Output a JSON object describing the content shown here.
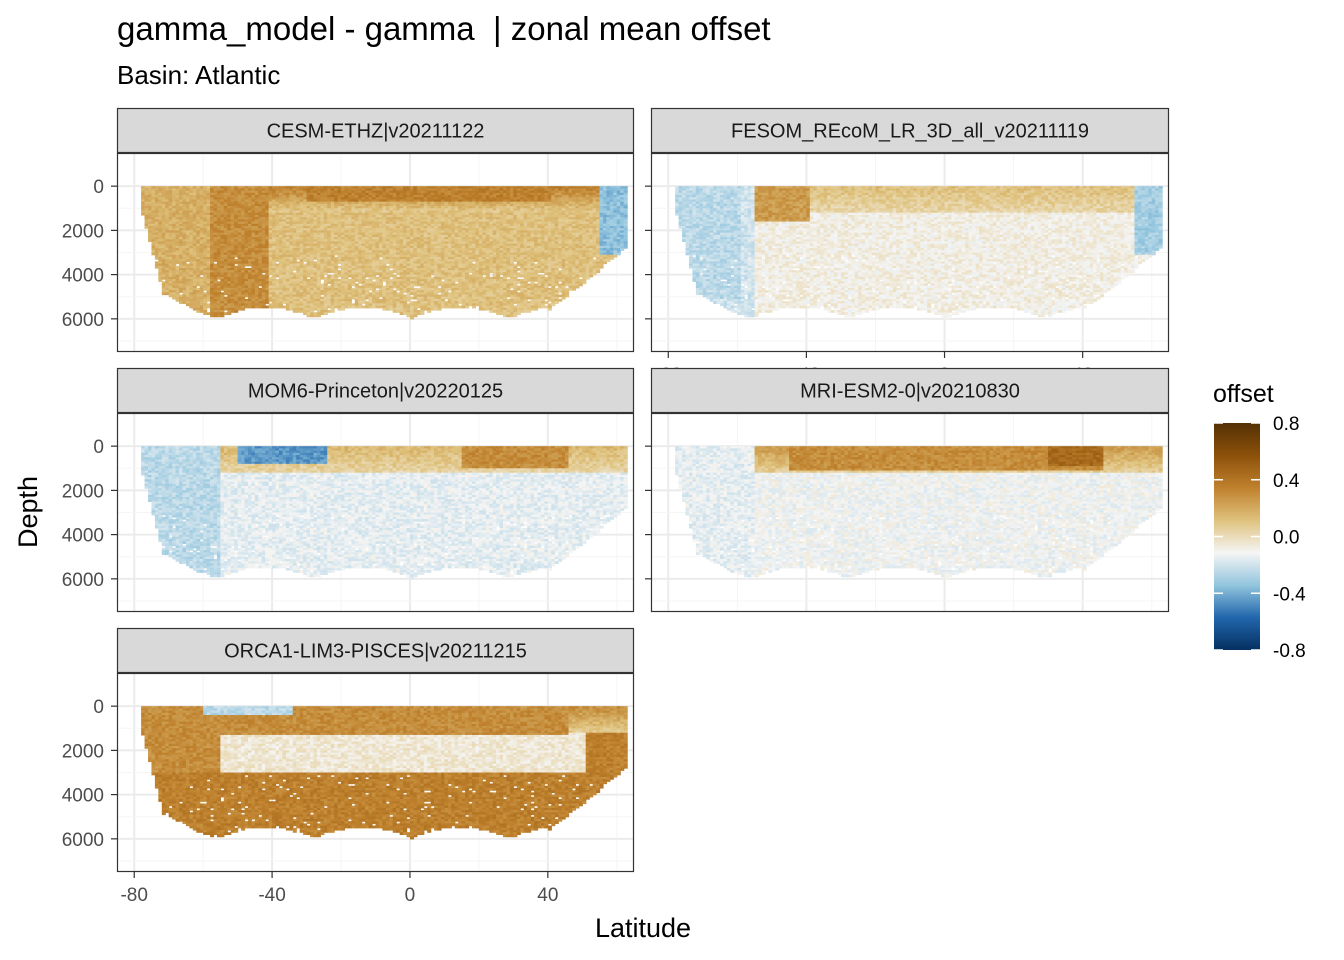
{
  "title": "gamma_model - gamma  | zonal mean offset",
  "subtitle": "Basin: Atlantic",
  "chart_data": {
    "type": "heatmap",
    "xlabel": "Latitude",
    "ylabel": "Depth",
    "x_ticks": [
      -80,
      -40,
      0,
      40
    ],
    "y_ticks": [
      0,
      2000,
      4000,
      6000
    ],
    "xlim": [
      -85,
      65
    ],
    "ylim": [
      7500,
      -1500
    ],
    "y_reversed": true,
    "grid": true,
    "legend": {
      "title": "offset",
      "position": "right",
      "ticks": [
        0.8,
        0.4,
        0.0,
        -0.4,
        -0.8
      ],
      "tick_labels": [
        "0.8",
        "0.4",
        "0.0",
        "-0.4",
        "-0.8"
      ],
      "range": [
        -0.8,
        0.8
      ],
      "colors": [
        "#053061",
        "#2166ac",
        "#92c5de",
        "#f5f5f5",
        "#dfc27d",
        "#bf812d",
        "#8c510a",
        "#543005"
      ]
    },
    "panels": [
      {
        "name": "CESM-ETHZ|v20211122",
        "surface_offset": 0.35,
        "deep_offset": 0.12,
        "southern_offset": 0.18,
        "zones": [
          {
            "lat_min": -58,
            "lat_max": -42,
            "depth_min": 0,
            "depth_max": 6000,
            "offset": 0.3
          },
          {
            "lat_min": -30,
            "lat_max": 40,
            "depth_min": 0,
            "depth_max": 600,
            "offset": 0.35
          },
          {
            "lat_min": 55,
            "lat_max": 63,
            "depth_min": 0,
            "depth_max": 3000,
            "offset": -0.35
          }
        ]
      },
      {
        "name": "FESOM_REcoM_LR_3D_all_v20211119",
        "surface_offset": 0.12,
        "deep_offset": -0.08,
        "southern_offset": -0.2,
        "zones": [
          {
            "lat_min": -55,
            "lat_max": -40,
            "depth_min": 0,
            "depth_max": 1500,
            "offset": 0.25
          },
          {
            "lat_min": -78,
            "lat_max": -60,
            "depth_min": 0,
            "depth_max": 5000,
            "offset": -0.25
          },
          {
            "lat_min": 55,
            "lat_max": 63,
            "depth_min": 0,
            "depth_max": 3000,
            "offset": -0.3
          }
        ]
      },
      {
        "name": "MOM6-Princeton|v20220125",
        "surface_offset": 0.15,
        "deep_offset": -0.15,
        "southern_offset": -0.25,
        "zones": [
          {
            "lat_min": -50,
            "lat_max": -25,
            "depth_min": 0,
            "depth_max": 700,
            "offset": -0.45
          },
          {
            "lat_min": 15,
            "lat_max": 45,
            "depth_min": 0,
            "depth_max": 900,
            "offset": 0.3
          }
        ]
      },
      {
        "name": "MRI-ESM2-0|v20210830",
        "surface_offset": 0.25,
        "deep_offset": -0.12,
        "southern_offset": -0.15,
        "zones": [
          {
            "lat_min": -45,
            "lat_max": 45,
            "depth_min": 0,
            "depth_max": 1000,
            "offset": 0.3
          },
          {
            "lat_min": 30,
            "lat_max": 45,
            "depth_min": 0,
            "depth_max": 800,
            "offset": 0.45
          }
        ]
      },
      {
        "name": "ORCA1-LIM3-PISCES|v20211215",
        "surface_offset": 0.3,
        "deep_offset": 0.35,
        "southern_offset": 0.3,
        "zones": [
          {
            "lat_min": -55,
            "lat_max": 50,
            "depth_min": 1200,
            "depth_max": 3000,
            "offset": -0.05
          },
          {
            "lat_min": -75,
            "lat_max": 63,
            "depth_min": 3000,
            "depth_max": 6000,
            "offset": 0.35
          },
          {
            "lat_min": -55,
            "lat_max": 45,
            "depth_min": 0,
            "depth_max": 1200,
            "offset": 0.3
          },
          {
            "lat_min": -60,
            "lat_max": -35,
            "depth_min": 0,
            "depth_max": 300,
            "offset": -0.25
          }
        ]
      }
    ]
  }
}
